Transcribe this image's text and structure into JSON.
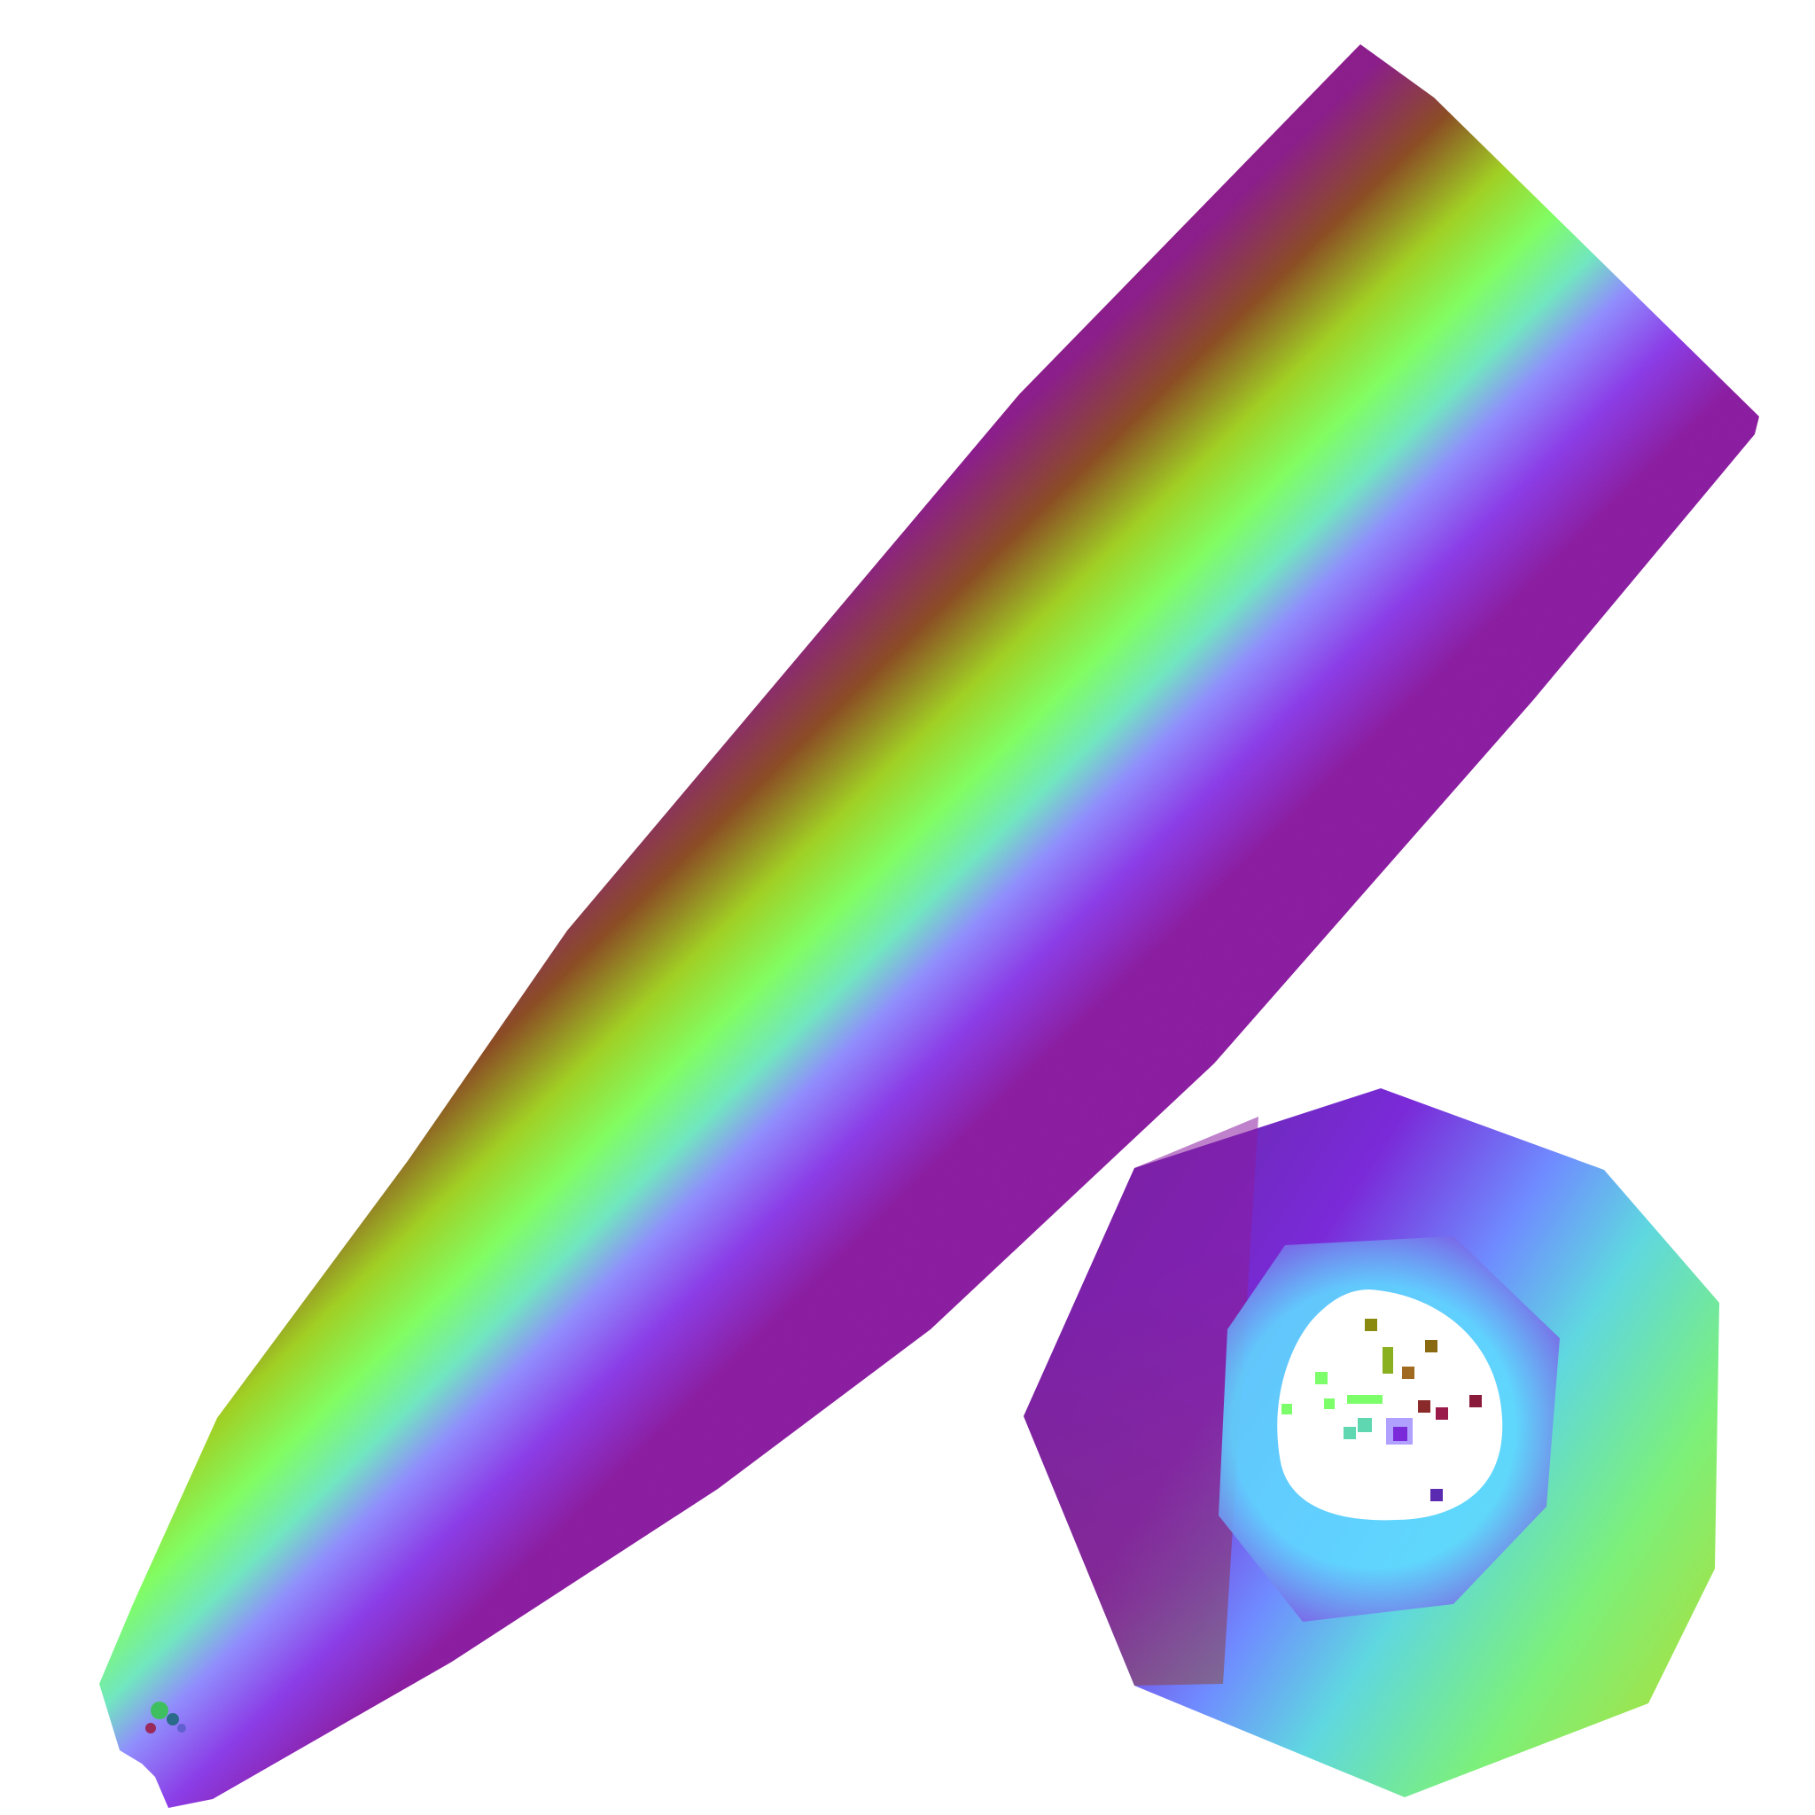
{
  "image": {
    "background": "#ffffff",
    "subjects": [
      {
        "id": "side-view",
        "kind": "tapered-rod-normal-map"
      },
      {
        "id": "end-view",
        "kind": "octagonal-cross-section-normal-map"
      }
    ],
    "normal_map_colors": {
      "magenta": "#8a1aa0",
      "purple": "#7a2ad8",
      "lavender": "#8f8cff",
      "cyan": "#5fd7ff",
      "green": "#7cff6a",
      "yellow_green": "#a8f04a",
      "olive": "#8a8a10",
      "brown": "#8a2a2a"
    }
  }
}
